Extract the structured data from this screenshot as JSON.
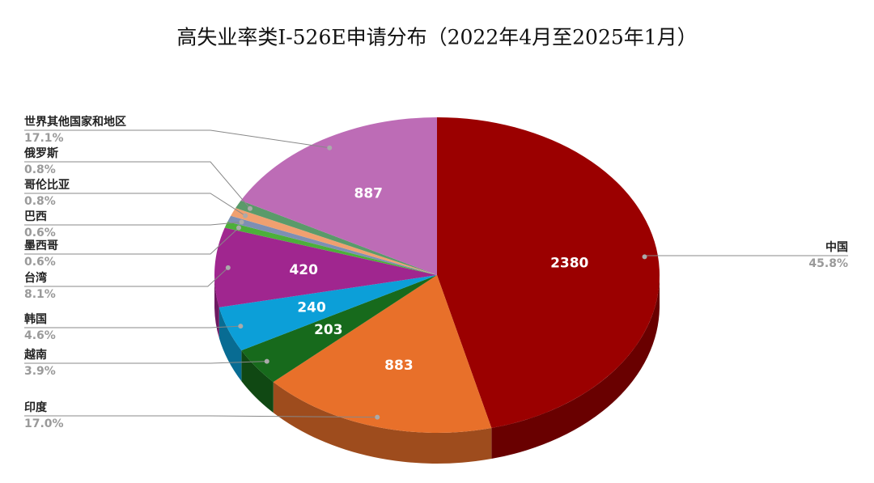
{
  "chart_data": {
    "type": "pie",
    "three_d": true,
    "title": "高失业率类I-526E申请分布（2022年4月至2025年1月）",
    "categories": [
      "中国",
      "印度",
      "越南",
      "韩国",
      "台湾",
      "墨西哥",
      "巴西",
      "哥伦比亚",
      "俄罗斯",
      "世界其他国家和地区"
    ],
    "values": [
      2380,
      883,
      203,
      240,
      420,
      33,
      33,
      44,
      44,
      887
    ],
    "percent_labels": [
      "45.8%",
      "17.0%",
      "3.9%",
      "4.6%",
      "8.1%",
      "0.6%",
      "0.6%",
      "0.8%",
      "0.8%",
      "17.1%"
    ],
    "colors": [
      "#9b0000",
      "#e8702a",
      "#176a1c",
      "#0c9fd8",
      "#a0268f",
      "#4caf3a",
      "#7d8fb3",
      "#f0a070",
      "#5a9a6a",
      "#bd6cb6"
    ]
  }
}
